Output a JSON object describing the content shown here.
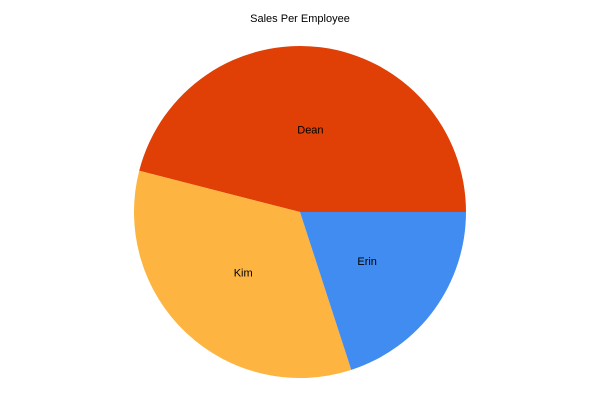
{
  "chart_data": {
    "type": "pie",
    "title": "Sales Per Employee",
    "categories": [
      "Dean",
      "Kim",
      "Erin"
    ],
    "values": [
      46,
      34,
      20
    ],
    "colors": [
      "#E04006",
      "#FDB440",
      "#418CF0"
    ],
    "start_angle": "3 o'clock",
    "direction": "counterclockwise",
    "legend": "none"
  }
}
